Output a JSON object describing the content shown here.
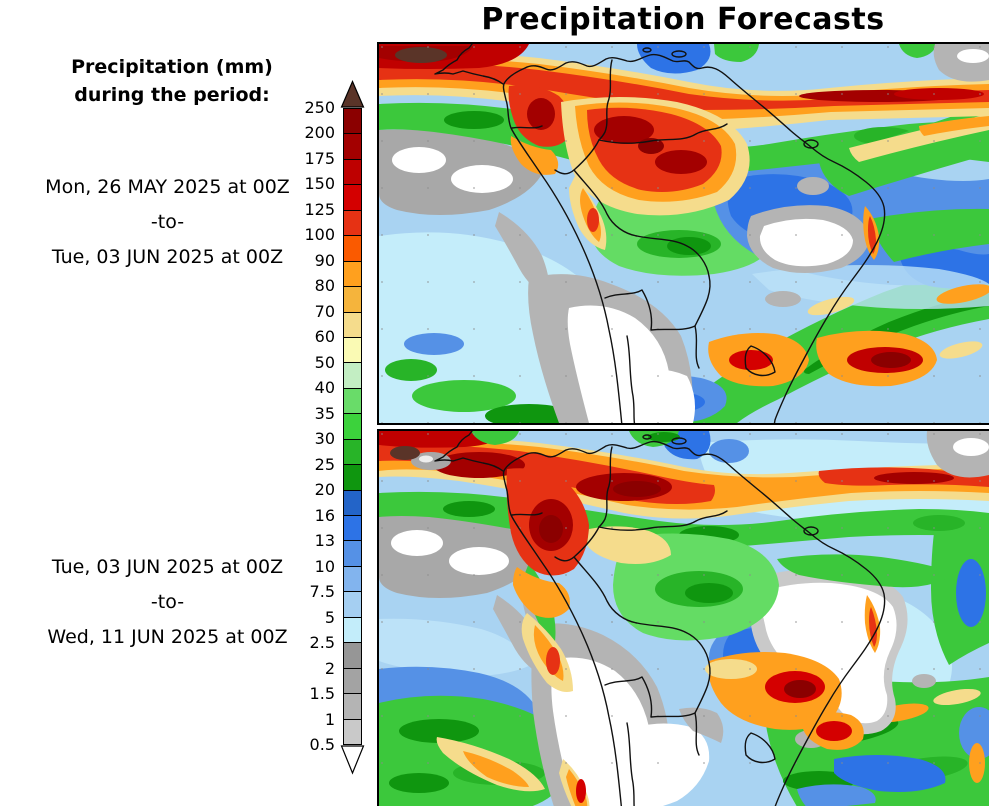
{
  "title": "Precipitation Forecasts",
  "legend": {
    "heading": [
      "Precipitation (mm)",
      "during the period:"
    ],
    "ticks": [
      "250",
      "200",
      "175",
      "150",
      "125",
      "100",
      "90",
      "80",
      "70",
      "60",
      "50",
      "40",
      "35",
      "30",
      "25",
      "20",
      "16",
      "13",
      "10",
      "7.5",
      "5",
      "2.5",
      "2",
      "1.5",
      "1",
      "0.5"
    ],
    "segment_colors": [
      "#8B0000",
      "#A30000",
      "#BE0000",
      "#D40000",
      "#E63214",
      "#FA5A00",
      "#FFA01E",
      "#F5B43C",
      "#F5DC8C",
      "#FAFAB4",
      "#C3EEC3",
      "#69DC69",
      "#3CD23C",
      "#28B428",
      "#0F960F",
      "#2364C8",
      "#2D73E6",
      "#5591E6",
      "#82B4EE",
      "#A5CFF2",
      "#C3EDFA",
      "#969696",
      "#A3A3A3",
      "#B4B4B4",
      "#C9C9C9"
    ],
    "over_arrow_color": "#5A3428",
    "under_arrow_color": "#FFFFFF"
  },
  "panels": [
    {
      "start": "Mon, 26 MAY 2025 at 00Z",
      "separator": "-to-",
      "end": "Tue, 03 JUN 2025 at 00Z",
      "region": "South America"
    },
    {
      "start": "Tue, 03 JUN 2025 at 00Z",
      "separator": "-to-",
      "end": "Wed, 11 JUN 2025 at 00Z",
      "region": "South America"
    }
  ]
}
